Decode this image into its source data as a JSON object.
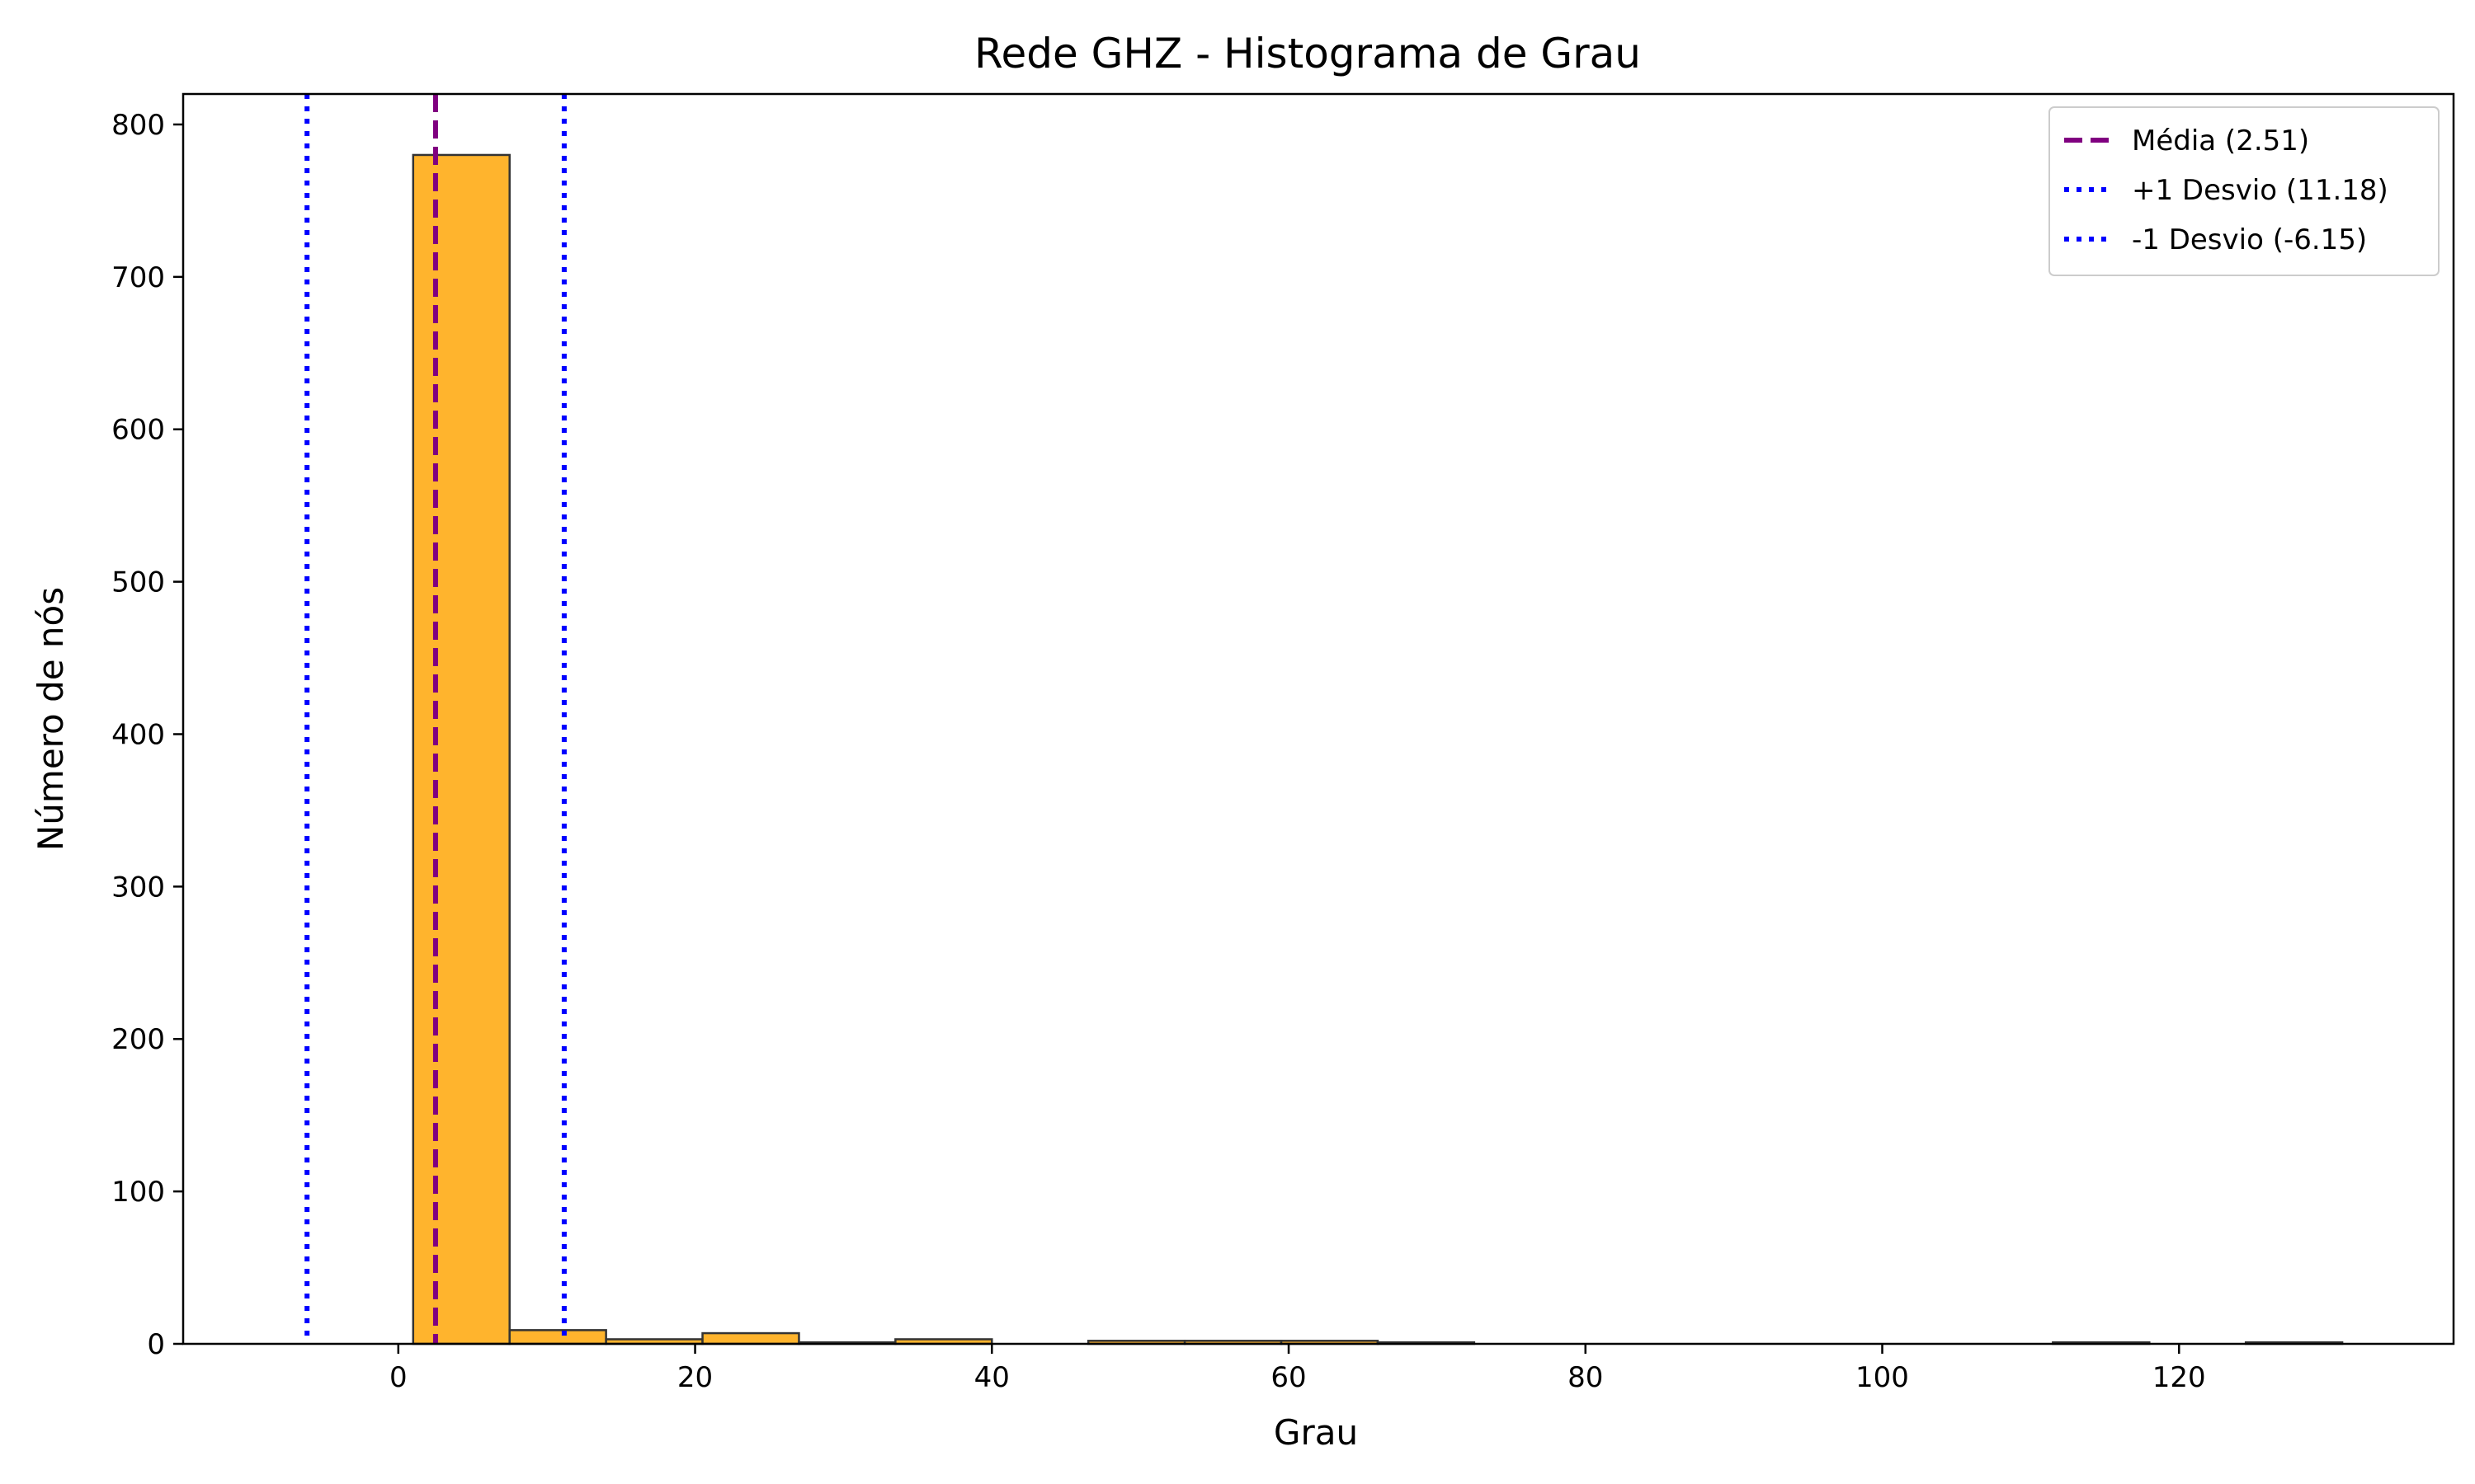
{
  "chart_data": {
    "type": "bar",
    "title": "Rede GHZ - Histograma de Grau",
    "xlabel": "Grau",
    "ylabel": "Número de nós",
    "xlim": [
      -14.5,
      138.5
    ],
    "ylim": [
      0,
      820
    ],
    "xticks": [
      0,
      20,
      40,
      60,
      80,
      100,
      120
    ],
    "yticks": [
      0,
      100,
      200,
      300,
      400,
      500,
      600,
      700,
      800
    ],
    "grid": false,
    "legend_position": "top-right",
    "bar_color": "#ffb42d",
    "bar_edge_color": "#333333",
    "bins": [
      {
        "x0": 1,
        "x1": 7.5,
        "value": 780
      },
      {
        "x0": 7.5,
        "x1": 14,
        "value": 9
      },
      {
        "x0": 14,
        "x1": 20.5,
        "value": 3
      },
      {
        "x0": 20.5,
        "x1": 27,
        "value": 7
      },
      {
        "x0": 27,
        "x1": 33.5,
        "value": 1
      },
      {
        "x0": 33.5,
        "x1": 40,
        "value": 3
      },
      {
        "x0": 40,
        "x1": 46.5,
        "value": 0
      },
      {
        "x0": 46.5,
        "x1": 53,
        "value": 2
      },
      {
        "x0": 53,
        "x1": 59.5,
        "value": 2
      },
      {
        "x0": 59.5,
        "x1": 66,
        "value": 2
      },
      {
        "x0": 66,
        "x1": 72.5,
        "value": 1
      },
      {
        "x0": 72.5,
        "x1": 79,
        "value": 0
      },
      {
        "x0": 79,
        "x1": 85.5,
        "value": 0
      },
      {
        "x0": 85.5,
        "x1": 92,
        "value": 0
      },
      {
        "x0": 92,
        "x1": 98.5,
        "value": 0
      },
      {
        "x0": 98.5,
        "x1": 105,
        "value": 0
      },
      {
        "x0": 105,
        "x1": 111.5,
        "value": 0
      },
      {
        "x0": 111.5,
        "x1": 118,
        "value": 1
      },
      {
        "x0": 118,
        "x1": 124.5,
        "value": 0
      },
      {
        "x0": 124.5,
        "x1": 131,
        "value": 1
      }
    ],
    "reference_lines": [
      {
        "label": "Média (2.51)",
        "x": 2.51,
        "color": "#800080",
        "style": "dashed"
      },
      {
        "label": "+1 Desvio (11.18)",
        "x": 11.18,
        "color": "#0000ff",
        "style": "dotted"
      },
      {
        "label": "-1 Desvio (-6.15)",
        "x": -6.15,
        "color": "#0000ff",
        "style": "dotted"
      }
    ]
  }
}
